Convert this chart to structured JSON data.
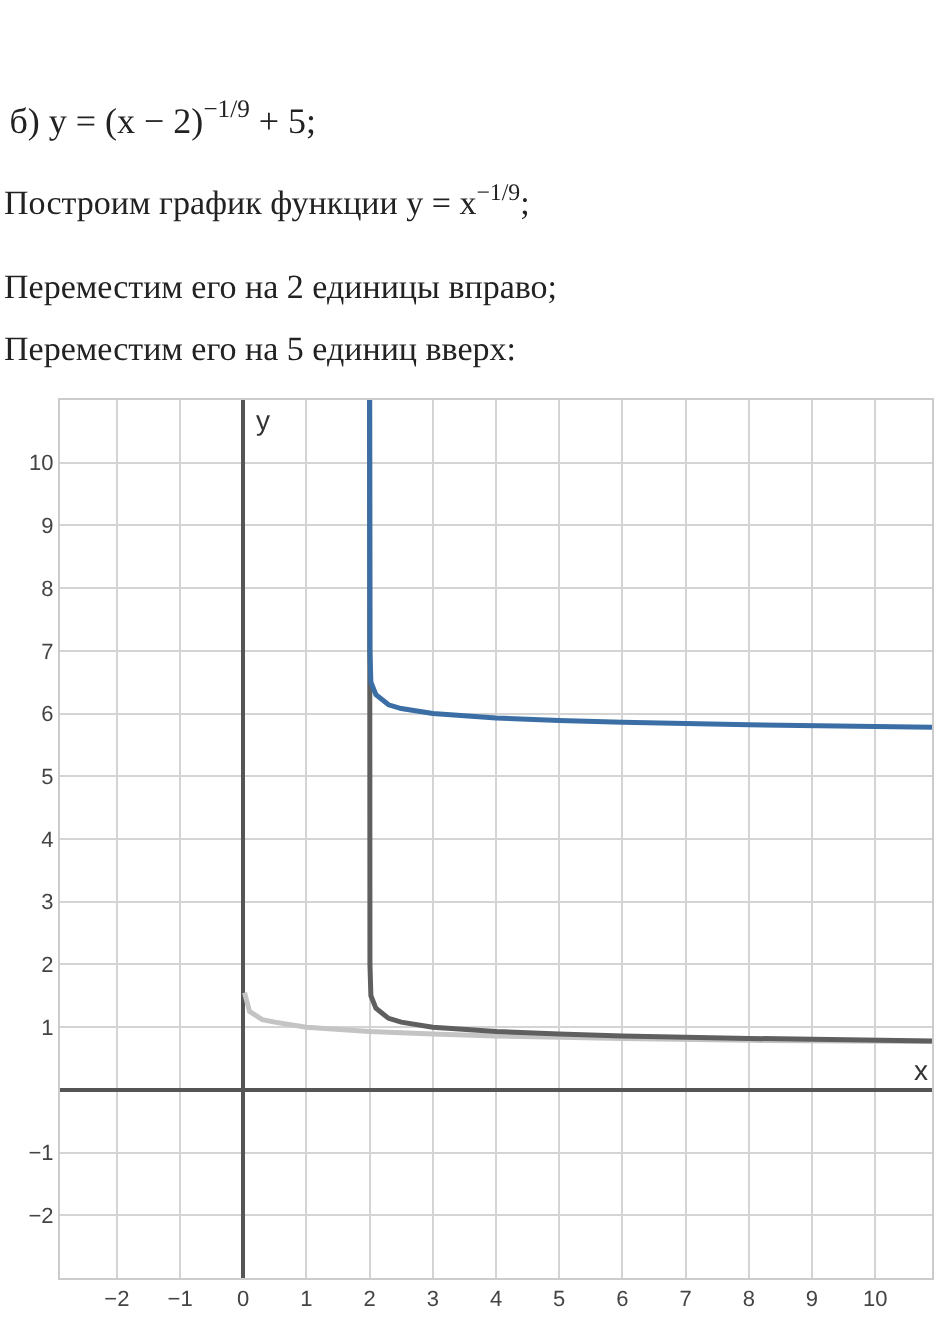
{
  "chart_data": {
    "type": "line",
    "title": "б) y = (x − 2)$^{−1/9}$ + 5;",
    "subtitle": "Построим график функции y = x$^{−1/9}$;",
    "annotations": [
      "Переместим его на 2 единицы вправо;",
      "Переместим его на 5 единиц вверх:"
    ],
    "xlabel": "x",
    "ylabel": "y",
    "series": [
      {
        "color": "#c4c4c4",
        "x": [
          0.02,
          0.1,
          0.3,
          0.5,
          1,
          2,
          3,
          4,
          6,
          8,
          10.9
        ],
        "values": [
          1.55,
          1.25,
          1.12,
          1.08,
          1.0,
          0.93,
          0.89,
          0.86,
          0.82,
          0.79,
          0.77
        ]
      },
      {
        "color": "#5f5f5f",
        "x": [
          2.0,
          2.005,
          2.02,
          2.1,
          2.3,
          2.5,
          3,
          4,
          5,
          6,
          8,
          10.9
        ],
        "values": [
          11,
          2.0,
          1.5,
          1.3,
          1.14,
          1.08,
          1.0,
          0.93,
          0.89,
          0.86,
          0.82,
          0.78
        ]
      },
      {
        "color": "#3a6ea5",
        "x": [
          2.0,
          2.005,
          2.02,
          2.1,
          2.3,
          2.5,
          3,
          4,
          5,
          6,
          8,
          10.9
        ],
        "values": [
          11,
          7.0,
          6.5,
          6.3,
          6.14,
          6.08,
          6.0,
          5.93,
          5.89,
          5.86,
          5.82,
          5.78
        ]
      }
    ],
    "xlim": [
      -2.9,
      10.9
    ],
    "ylim": [
      -3,
      11
    ],
    "xticks": [
      -2,
      -1,
      0,
      1,
      2,
      3,
      4,
      5,
      6,
      7,
      8,
      9,
      10
    ],
    "yticks": [
      -2,
      -1,
      1,
      2,
      3,
      4,
      5,
      6,
      7,
      8,
      9,
      10
    ],
    "grid": true,
    "marker": "none",
    "line_style": "solid"
  }
}
